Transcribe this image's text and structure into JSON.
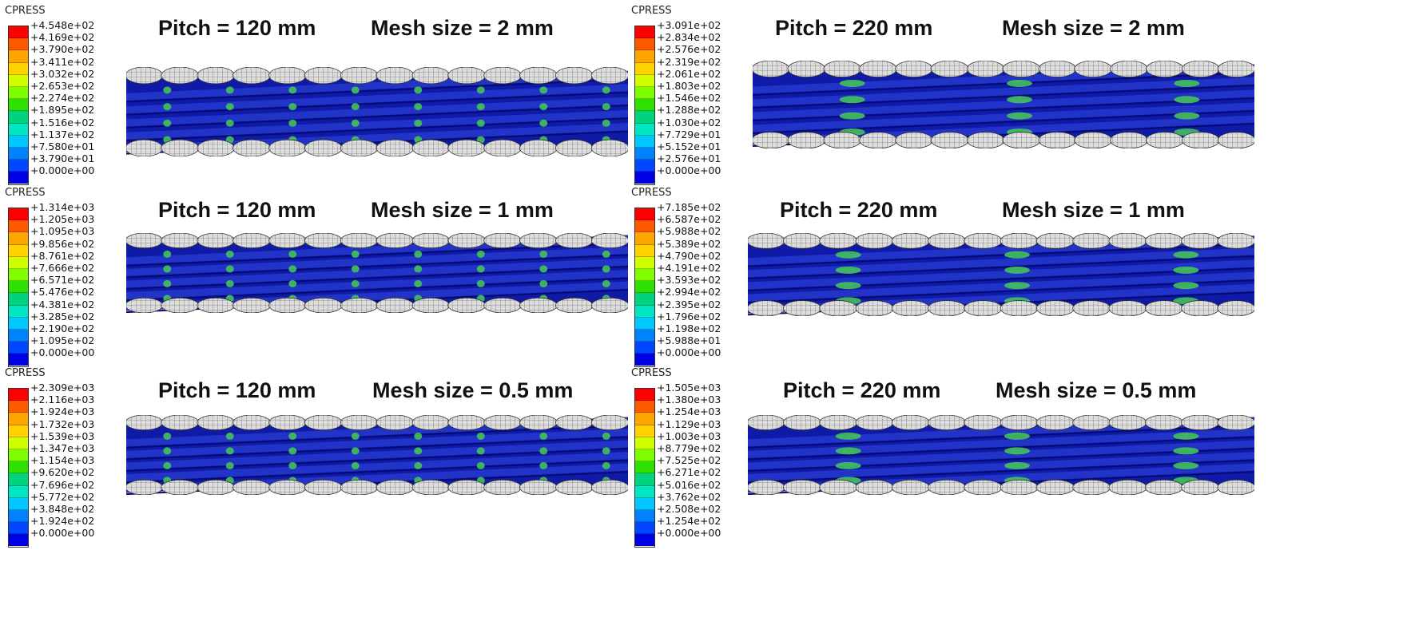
{
  "colorbar_colors": [
    "#ff0000",
    "#ff5900",
    "#ffa500",
    "#ffd200",
    "#d2ff00",
    "#7dff00",
    "#2ee000",
    "#00d27d",
    "#00e6c3",
    "#00c8ff",
    "#0082ff",
    "#0046ff",
    "#0000e6"
  ],
  "wire_colors": {
    "body": "#0f1aa6",
    "ridge": "#2233c8",
    "groove": "#060b72",
    "mesh": "#dcdcdc",
    "mesh_line": "#555555",
    "hot": "#44c25a"
  },
  "panels": [
    {
      "legend_title": "CPRESS",
      "pitch": "Pitch = 120 mm",
      "mesh": "Mesh size = 2 mm",
      "contacts": 8,
      "ticks": [
        "+4.548e+02",
        "+4.169e+02",
        "+3.790e+02",
        "+3.411e+02",
        "+3.032e+02",
        "+2.653e+02",
        "+2.274e+02",
        "+1.895e+02",
        "+1.516e+02",
        "+1.137e+02",
        "+7.580e+01",
        "+3.790e+01",
        "+0.000e+00"
      ]
    },
    {
      "legend_title": "CPRESS",
      "pitch": "Pitch = 220 mm",
      "mesh": "Mesh size = 2 mm",
      "contacts": 3,
      "ticks": [
        "+3.091e+02",
        "+2.834e+02",
        "+2.576e+02",
        "+2.319e+02",
        "+2.061e+02",
        "+1.803e+02",
        "+1.546e+02",
        "+1.288e+02",
        "+1.030e+02",
        "+7.729e+01",
        "+5.152e+01",
        "+2.576e+01",
        "+0.000e+00"
      ]
    },
    {
      "legend_title": "CPRESS",
      "pitch": "Pitch = 120 mm",
      "mesh": "Mesh size = 1 mm",
      "contacts": 8,
      "ticks": [
        "+1.314e+03",
        "+1.205e+03",
        "+1.095e+03",
        "+9.856e+02",
        "+8.761e+02",
        "+7.666e+02",
        "+6.571e+02",
        "+5.476e+02",
        "+4.381e+02",
        "+3.285e+02",
        "+2.190e+02",
        "+1.095e+02",
        "+0.000e+00"
      ]
    },
    {
      "legend_title": "CPRESS",
      "pitch": "Pitch = 220 mm",
      "mesh": "Mesh size = 1 mm",
      "contacts": 3,
      "ticks": [
        "+7.185e+02",
        "+6.587e+02",
        "+5.988e+02",
        "+5.389e+02",
        "+4.790e+02",
        "+4.191e+02",
        "+3.593e+02",
        "+2.994e+02",
        "+2.395e+02",
        "+1.796e+02",
        "+1.198e+02",
        "+5.988e+01",
        "+0.000e+00"
      ]
    },
    {
      "legend_title": "CPRESS",
      "pitch": "Pitch = 120 mm",
      "mesh": "Mesh size = 0.5 mm",
      "contacts": 8,
      "ticks": [
        "+2.309e+03",
        "+2.116e+03",
        "+1.924e+03",
        "+1.732e+03",
        "+1.539e+03",
        "+1.347e+03",
        "+1.154e+03",
        "+9.620e+02",
        "+7.696e+02",
        "+5.772e+02",
        "+3.848e+02",
        "+1.924e+02",
        "+0.000e+00"
      ]
    },
    {
      "legend_title": "CPRESS",
      "pitch": "Pitch = 220 mm",
      "mesh": "Mesh size = 0.5 mm",
      "contacts": 3,
      "ticks": [
        "+1.505e+03",
        "+1.380e+03",
        "+1.254e+03",
        "+1.129e+03",
        "+1.003e+03",
        "+8.779e+02",
        "+7.525e+02",
        "+6.271e+02",
        "+5.016e+02",
        "+3.762e+02",
        "+2.508e+02",
        "+1.254e+02",
        "+0.000e+00"
      ]
    }
  ]
}
